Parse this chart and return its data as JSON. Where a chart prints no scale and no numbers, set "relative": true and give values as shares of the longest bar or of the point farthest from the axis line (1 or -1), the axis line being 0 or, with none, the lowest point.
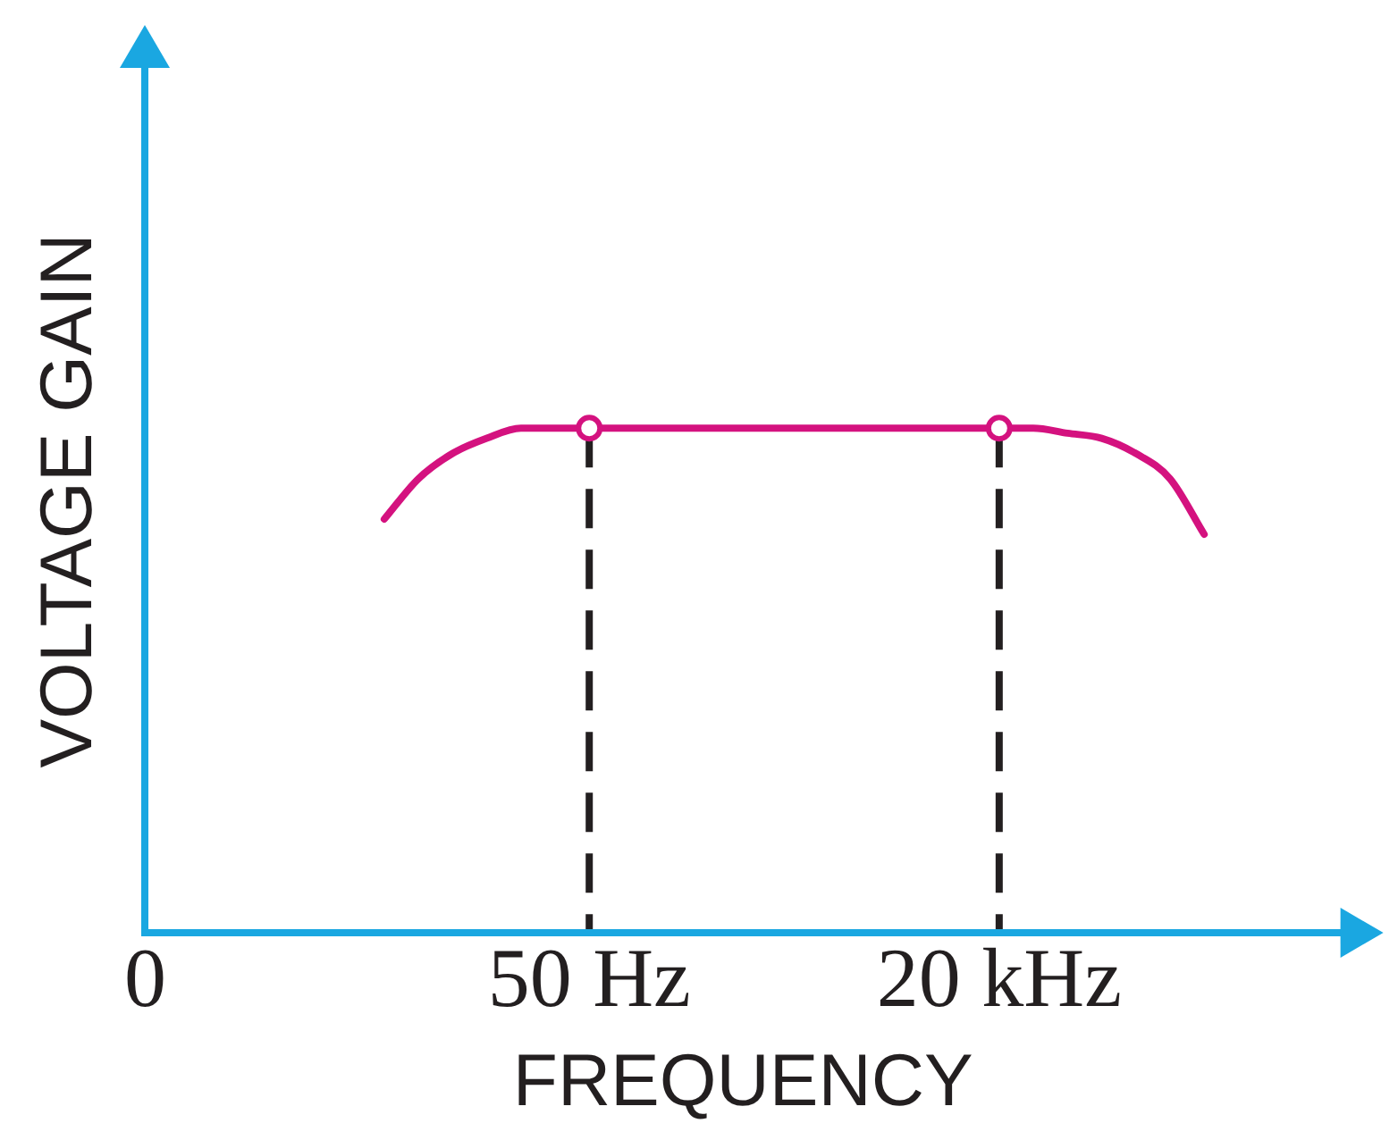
{
  "chart_data": {
    "type": "line",
    "relative": true,
    "xlabel": "FREQUENCY",
    "ylabel": "VOLTAGE GAIN",
    "categories": [
      "0",
      null,
      null,
      null,
      null,
      null,
      null,
      null,
      null,
      null,
      null,
      null,
      null,
      "50 Hz",
      null,
      null,
      null,
      null,
      null,
      null,
      null,
      null,
      null,
      null,
      null,
      "20 kHz",
      null,
      null,
      null,
      null,
      null,
      null,
      null,
      null,
      null,
      null
    ],
    "series": [
      {
        "color": "#d4127f",
        "values": [
          null,
          null,
          null,
          null,
          null,
          null,
          null,
          0.82,
          0.9,
          0.95,
          0.98,
          1,
          1,
          1,
          1,
          1,
          1,
          1,
          1,
          1,
          1,
          1,
          1,
          1,
          1,
          1,
          1,
          0.99,
          0.98,
          0.95,
          0.9,
          0.79,
          null,
          null,
          null,
          null
        ]
      },
      {
        "type": "scatter",
        "color": "#d4127f",
        "marker": "circle",
        "x": [
          "50 Hz",
          "20 kHz"
        ],
        "values": [
          1,
          1
        ]
      }
    ],
    "ref_lines": [
      {
        "axis": "x",
        "value": "50 Hz",
        "line_style": "dashed",
        "color": "#231f20"
      },
      {
        "axis": "x",
        "value": "20 kHz",
        "line_style": "dashed",
        "color": "#231f20"
      }
    ]
  }
}
